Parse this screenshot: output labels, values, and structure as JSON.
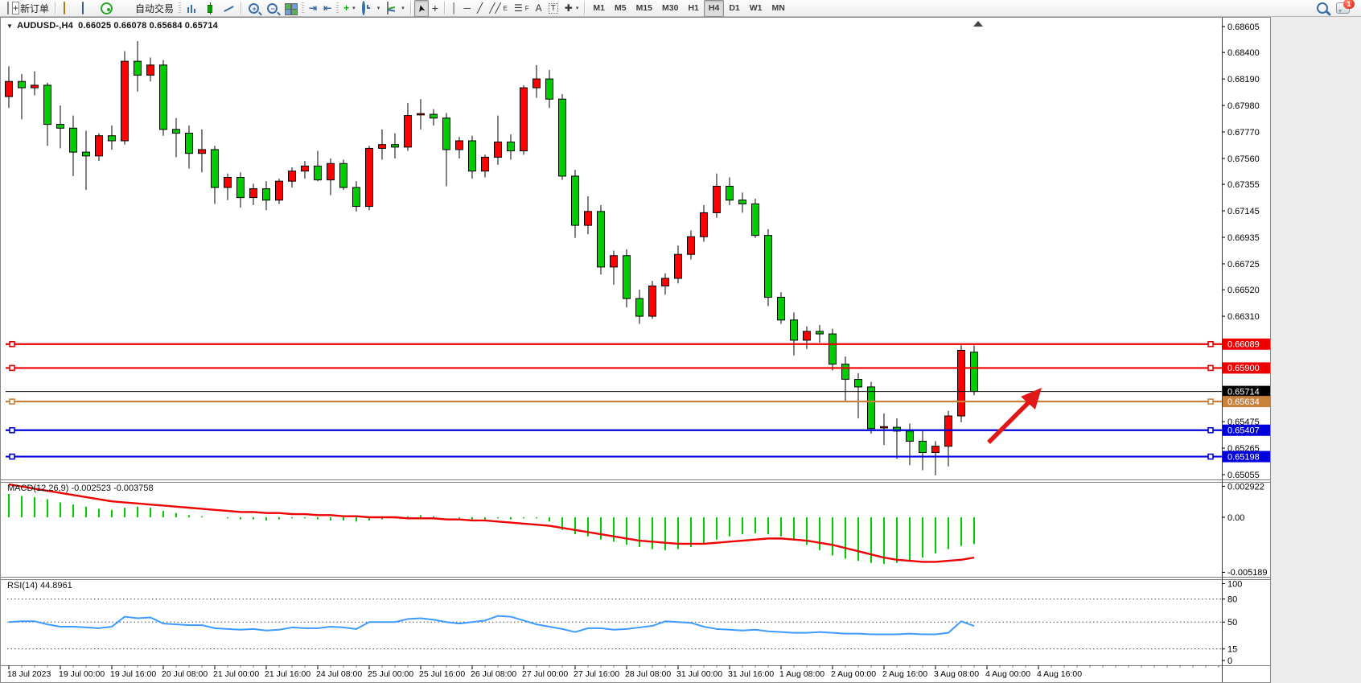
{
  "toolbar": {
    "new_order_label": "新订单",
    "autotrade_label": "自动交易",
    "timeframes": [
      "M1",
      "M5",
      "M15",
      "M30",
      "H1",
      "H4",
      "D1",
      "W1",
      "MN"
    ],
    "active_timeframe": "H4",
    "notification_badge": "1",
    "drawing_tool_letters": {
      "channel": "E",
      "fibonacci": "F",
      "text": "A",
      "label": "T"
    }
  },
  "chart": {
    "symbol_period": "AUDUSD-,H4",
    "ohlc": {
      "open": "0.66025",
      "high": "0.66078",
      "low": "0.65684",
      "close": "0.65714"
    }
  },
  "macd": {
    "label": "MACD(12,26,9) -0.002523 -0.003758",
    "axis": [
      "0.002922",
      "0.00",
      "-0.005189"
    ]
  },
  "rsi": {
    "label": "RSI(14) 44.8961",
    "axis": [
      "100",
      "80",
      "50",
      "15",
      "0"
    ]
  },
  "price_axis": {
    "ticks": [
      "0.68605",
      "0.68400",
      "0.68190",
      "0.67980",
      "0.67770",
      "0.67560",
      "0.67355",
      "0.67145",
      "0.66935",
      "0.66725",
      "0.66520",
      "0.66310",
      "0.65475",
      "0.65265",
      "0.65055"
    ],
    "line_labels": [
      {
        "text": "0.66089",
        "bg": "#ee0000",
        "price": 0.66089
      },
      {
        "text": "0.65900",
        "bg": "#ee0000",
        "price": 0.659
      },
      {
        "text": "0.65714",
        "bg": "#000000",
        "price": 0.65714
      },
      {
        "text": "0.65634",
        "bg": "#c8823c",
        "price": 0.65634
      },
      {
        "text": "0.65407",
        "bg": "#0000dd",
        "price": 0.65407
      },
      {
        "text": "0.65198",
        "bg": "#0000dd",
        "price": 0.65198
      }
    ]
  },
  "time_axis": {
    "labels": [
      "18 Jul 2023",
      "19 Jul 00:00",
      "19 Jul 16:00",
      "20 Jul 08:00",
      "21 Jul 00:00",
      "21 Jul 16:00",
      "24 Jul 08:00",
      "25 Jul 00:00",
      "25 Jul 16:00",
      "26 Jul 08:00",
      "27 Jul 00:00",
      "27 Jul 16:00",
      "28 Jul 08:00",
      "31 Jul 00:00",
      "31 Jul 16:00",
      "1 Aug 08:00",
      "2 Aug 00:00",
      "2 Aug 16:00",
      "3 Aug 08:00",
      "4 Aug 00:00",
      "4 Aug 16:00"
    ]
  },
  "chart_data": {
    "type": "candlestick",
    "symbol": "AUDUSD-",
    "timeframe": "H4",
    "up_color": "#ff0000",
    "down_color": "#00cc00",
    "ylim": [
      0.65029,
      0.68655
    ],
    "candles": [
      [
        0.6805,
        0.6829,
        0.6796,
        0.6817
      ],
      [
        0.6817,
        0.6823,
        0.6787,
        0.6812
      ],
      [
        0.6812,
        0.6825,
        0.6806,
        0.6814
      ],
      [
        0.6814,
        0.6816,
        0.6766,
        0.6783
      ],
      [
        0.6783,
        0.6798,
        0.6764,
        0.678
      ],
      [
        0.678,
        0.679,
        0.6742,
        0.6761
      ],
      [
        0.6761,
        0.6778,
        0.6731,
        0.6758
      ],
      [
        0.6758,
        0.6776,
        0.6754,
        0.6774
      ],
      [
        0.6774,
        0.6782,
        0.6763,
        0.677
      ],
      [
        0.677,
        0.6841,
        0.6767,
        0.6833
      ],
      [
        0.6833,
        0.6849,
        0.6809,
        0.6822
      ],
      [
        0.6822,
        0.6836,
        0.6817,
        0.683
      ],
      [
        0.683,
        0.6834,
        0.6774,
        0.6779
      ],
      [
        0.6779,
        0.6788,
        0.6757,
        0.6776
      ],
      [
        0.6776,
        0.6782,
        0.6748,
        0.676
      ],
      [
        0.676,
        0.6779,
        0.6745,
        0.6763
      ],
      [
        0.6763,
        0.6766,
        0.672,
        0.6733
      ],
      [
        0.6733,
        0.6744,
        0.6723,
        0.6741
      ],
      [
        0.6741,
        0.6745,
        0.6717,
        0.6725
      ],
      [
        0.6725,
        0.6736,
        0.6719,
        0.6732
      ],
      [
        0.6732,
        0.6738,
        0.6715,
        0.6723
      ],
      [
        0.6723,
        0.674,
        0.672,
        0.6738
      ],
      [
        0.6738,
        0.6749,
        0.6733,
        0.6746
      ],
      [
        0.6746,
        0.6754,
        0.674,
        0.675
      ],
      [
        0.675,
        0.6762,
        0.6738,
        0.6739
      ],
      [
        0.6739,
        0.6756,
        0.6727,
        0.6752
      ],
      [
        0.6752,
        0.6755,
        0.6731,
        0.6733
      ],
      [
        0.6733,
        0.6738,
        0.6714,
        0.6718
      ],
      [
        0.6718,
        0.6766,
        0.6715,
        0.6764
      ],
      [
        0.6764,
        0.6779,
        0.6755,
        0.6767
      ],
      [
        0.6767,
        0.6776,
        0.6756,
        0.6765
      ],
      [
        0.6765,
        0.68,
        0.6762,
        0.679
      ],
      [
        0.679,
        0.6803,
        0.6779,
        0.6791
      ],
      [
        0.6791,
        0.6795,
        0.6782,
        0.6788
      ],
      [
        0.6788,
        0.6792,
        0.6734,
        0.6763
      ],
      [
        0.6763,
        0.6773,
        0.6756,
        0.677
      ],
      [
        0.677,
        0.6774,
        0.674,
        0.6746
      ],
      [
        0.6746,
        0.6759,
        0.6741,
        0.6757
      ],
      [
        0.6757,
        0.679,
        0.6751,
        0.6769
      ],
      [
        0.6769,
        0.6775,
        0.6755,
        0.6762
      ],
      [
        0.6762,
        0.6814,
        0.6759,
        0.6812
      ],
      [
        0.6812,
        0.683,
        0.6804,
        0.6819
      ],
      [
        0.6819,
        0.6826,
        0.6796,
        0.6803
      ],
      [
        0.6803,
        0.6807,
        0.6739,
        0.6742
      ],
      [
        0.6742,
        0.6747,
        0.6693,
        0.6703
      ],
      [
        0.6703,
        0.6726,
        0.6696,
        0.6714
      ],
      [
        0.6714,
        0.6719,
        0.6664,
        0.667
      ],
      [
        0.667,
        0.6683,
        0.6656,
        0.6679
      ],
      [
        0.6679,
        0.6684,
        0.6638,
        0.6645
      ],
      [
        0.6645,
        0.6652,
        0.6625,
        0.6631
      ],
      [
        0.6631,
        0.6659,
        0.6629,
        0.6655
      ],
      [
        0.6655,
        0.6665,
        0.6648,
        0.6661
      ],
      [
        0.6661,
        0.6687,
        0.6657,
        0.668
      ],
      [
        0.668,
        0.6699,
        0.6676,
        0.6694
      ],
      [
        0.6694,
        0.6719,
        0.669,
        0.6713
      ],
      [
        0.6713,
        0.6744,
        0.6709,
        0.6734
      ],
      [
        0.6734,
        0.6741,
        0.6719,
        0.6723
      ],
      [
        0.6723,
        0.6729,
        0.6713,
        0.672
      ],
      [
        0.672,
        0.6724,
        0.6693,
        0.6695
      ],
      [
        0.6695,
        0.67,
        0.6639,
        0.6646
      ],
      [
        0.6646,
        0.665,
        0.6625,
        0.6628
      ],
      [
        0.6628,
        0.6634,
        0.66,
        0.6612
      ],
      [
        0.6612,
        0.6623,
        0.6605,
        0.6619
      ],
      [
        0.6619,
        0.6624,
        0.661,
        0.6617
      ],
      [
        0.6617,
        0.6621,
        0.6588,
        0.6593
      ],
      [
        0.6593,
        0.6599,
        0.6563,
        0.6581
      ],
      [
        0.6581,
        0.6586,
        0.655,
        0.6575
      ],
      [
        0.6575,
        0.6579,
        0.6538,
        0.6542
      ],
      [
        0.6542,
        0.6554,
        0.6529,
        0.6543
      ],
      [
        0.6543,
        0.655,
        0.6518,
        0.654
      ],
      [
        0.654,
        0.6546,
        0.6513,
        0.6532
      ],
      [
        0.6532,
        0.654,
        0.6509,
        0.6523
      ],
      [
        0.6523,
        0.6532,
        0.6505,
        0.6528
      ],
      [
        0.6528,
        0.6556,
        0.6512,
        0.6552
      ],
      [
        0.6552,
        0.6608,
        0.6547,
        0.6604
      ],
      [
        0.66025,
        0.66078,
        0.65684,
        0.65714
      ]
    ],
    "hlines": [
      {
        "price": 0.66089,
        "color": "#ee0000",
        "kind": "horizontal-line"
      },
      {
        "price": 0.659,
        "color": "#ee0000",
        "kind": "horizontal-line"
      },
      {
        "price": 0.65714,
        "color": "#000000",
        "kind": "bid-price-line"
      },
      {
        "price": 0.65634,
        "color": "#c8823c",
        "kind": "horizontal-line"
      },
      {
        "price": 0.65407,
        "color": "#0000dd",
        "kind": "horizontal-line"
      },
      {
        "price": 0.65198,
        "color": "#0000dd",
        "kind": "horizontal-line"
      }
    ],
    "macd": {
      "params": [
        12,
        26,
        9
      ],
      "last_main": -0.002523,
      "last_signal": -0.003758,
      "scale_max": 0.002922,
      "scale_min": -0.005189,
      "histogram": [
        0.0022,
        0.002,
        0.0019,
        0.0017,
        0.0014,
        0.0012,
        0.001,
        0.0008,
        0.0007,
        0.0009,
        0.001,
        0.0009,
        0.0006,
        0.0004,
        0.0002,
        0.0001,
        0.0,
        -0.0001,
        -0.0002,
        -0.0002,
        -0.0003,
        -0.0002,
        -0.0001,
        -0.0001,
        -0.0002,
        -0.0003,
        -0.0003,
        -0.0004,
        -0.0003,
        -0.0002,
        -0.0001,
        0.0001,
        0.0002,
        0.0001,
        0.0,
        -0.0001,
        -0.0002,
        -0.0002,
        -0.0001,
        -0.0002,
        -0.0001,
        -0.0001,
        -0.0004,
        -0.0012,
        -0.0016,
        -0.0018,
        -0.0021,
        -0.0023,
        -0.0026,
        -0.0028,
        -0.003,
        -0.0031,
        -0.003,
        -0.0028,
        -0.0025,
        -0.0021,
        -0.0018,
        -0.0016,
        -0.0015,
        -0.0016,
        -0.0018,
        -0.0022,
        -0.0026,
        -0.0031,
        -0.0036,
        -0.0039,
        -0.0041,
        -0.0043,
        -0.0044,
        -0.0043,
        -0.0041,
        -0.0038,
        -0.0034,
        -0.003,
        -0.0027,
        -0.002523
      ],
      "signal": [
        0.0031,
        0.0029,
        0.0027,
        0.0025,
        0.0023,
        0.0021,
        0.0019,
        0.0017,
        0.0015,
        0.0014,
        0.0013,
        0.0012,
        0.0011,
        0.001,
        0.0009,
        0.0008,
        0.0007,
        0.0006,
        0.0005,
        0.0005,
        0.0004,
        0.0004,
        0.0003,
        0.0003,
        0.0002,
        0.0002,
        0.0001,
        0.0001,
        0.0,
        0.0,
        0.0,
        -0.0001,
        -0.0001,
        -0.0001,
        -0.0002,
        -0.0002,
        -0.0003,
        -0.0003,
        -0.0004,
        -0.0005,
        -0.0006,
        -0.0007,
        -0.0008,
        -0.001,
        -0.0012,
        -0.0014,
        -0.0016,
        -0.0018,
        -0.002,
        -0.0022,
        -0.0023,
        -0.0024,
        -0.0025,
        -0.0025,
        -0.0025,
        -0.0024,
        -0.0023,
        -0.0022,
        -0.0021,
        -0.002,
        -0.002,
        -0.0021,
        -0.0022,
        -0.0024,
        -0.0026,
        -0.0029,
        -0.0032,
        -0.0035,
        -0.0038,
        -0.004,
        -0.0041,
        -0.0042,
        -0.0042,
        -0.0041,
        -0.004,
        -0.0038
      ]
    },
    "rsi": {
      "period": 14,
      "last": 44.8961,
      "levels": [
        80,
        50,
        15
      ],
      "values": [
        50,
        51,
        51,
        47,
        44,
        44,
        43,
        42,
        44,
        57,
        55,
        56,
        48,
        47,
        46,
        46,
        42,
        41,
        40,
        41,
        39,
        40,
        43,
        42,
        42,
        44,
        43,
        41,
        50,
        50,
        50,
        54,
        55,
        53,
        50,
        48,
        50,
        52,
        58,
        57,
        52,
        47,
        44,
        41,
        37,
        42,
        42,
        40,
        41,
        43,
        45,
        51,
        50,
        49,
        44,
        41,
        40,
        39,
        40,
        38,
        37,
        36,
        36,
        37,
        36,
        35,
        35,
        34,
        34,
        34,
        35,
        34,
        34,
        36,
        51,
        44.9
      ],
      "level_style": "dotted"
    },
    "annotation_arrow": {
      "color": "#e01818",
      "from_xy": [
        1228,
        528
      ],
      "to_xy": [
        1285,
        470
      ]
    }
  }
}
